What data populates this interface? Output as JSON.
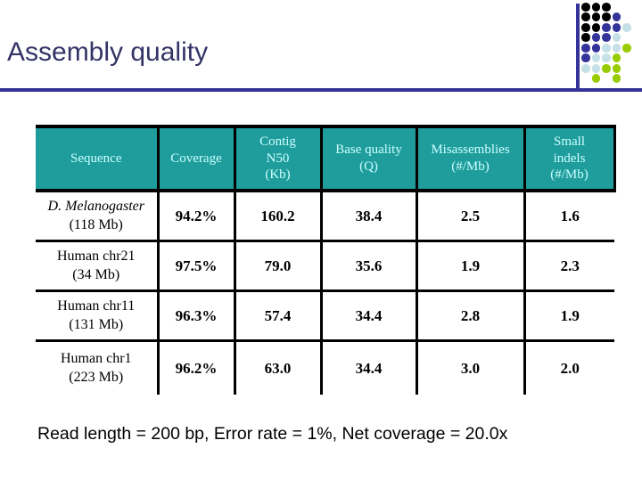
{
  "title": "Assembly quality",
  "footer": "Read length = 200 bp, Error rate = 1%, Net coverage = 20.0x",
  "colors": {
    "title_text": "#333366",
    "rule": "#333399",
    "header_bg": "#1F9C9C",
    "header_text": "#CCFFFF",
    "table_border": "#000000"
  },
  "decoration": {
    "line_color": "#333399",
    "dot_colors": {
      "K": "#000000",
      "N": "#333399",
      "L": "#C5E0E6",
      "G": "#99CC00"
    },
    "pattern": [
      "KKK..",
      "KKKN.",
      "KKNNL",
      "KNNL.",
      "NNLLG",
      "NLLG.",
      "LLGG.",
      ".G.G."
    ]
  },
  "table": {
    "headers": [
      "Sequence",
      "Coverage",
      "Contig\nN50\n(Kb)",
      "Base quality\n(Q)",
      "Misassemblies\n(#/Mb)",
      "Small\nindels\n(#/Mb)"
    ],
    "rows": [
      {
        "sequence": "D. Melanogaster",
        "sequence_italic": true,
        "size": "(118 Mb)",
        "coverage": "94.2%",
        "contig_n50": "160.2",
        "base_quality": "38.4",
        "misassemblies": "2.5",
        "small_indels": "1.6"
      },
      {
        "sequence": "Human chr21",
        "sequence_italic": false,
        "size": "(34 Mb)",
        "coverage": "97.5%",
        "contig_n50": "79.0",
        "base_quality": "35.6",
        "misassemblies": "1.9",
        "small_indels": "2.3"
      },
      {
        "sequence": "Human chr11",
        "sequence_italic": false,
        "size": "(131 Mb)",
        "coverage": "96.3%",
        "contig_n50": "57.4",
        "base_quality": "34.4",
        "misassemblies": "2.8",
        "small_indels": "1.9"
      },
      {
        "sequence": "Human chr1",
        "sequence_italic": false,
        "size": "(223 Mb)",
        "coverage": "96.2%",
        "contig_n50": "63.0",
        "base_quality": "34.4",
        "misassemblies": "3.0",
        "small_indels": "2.0"
      }
    ]
  }
}
